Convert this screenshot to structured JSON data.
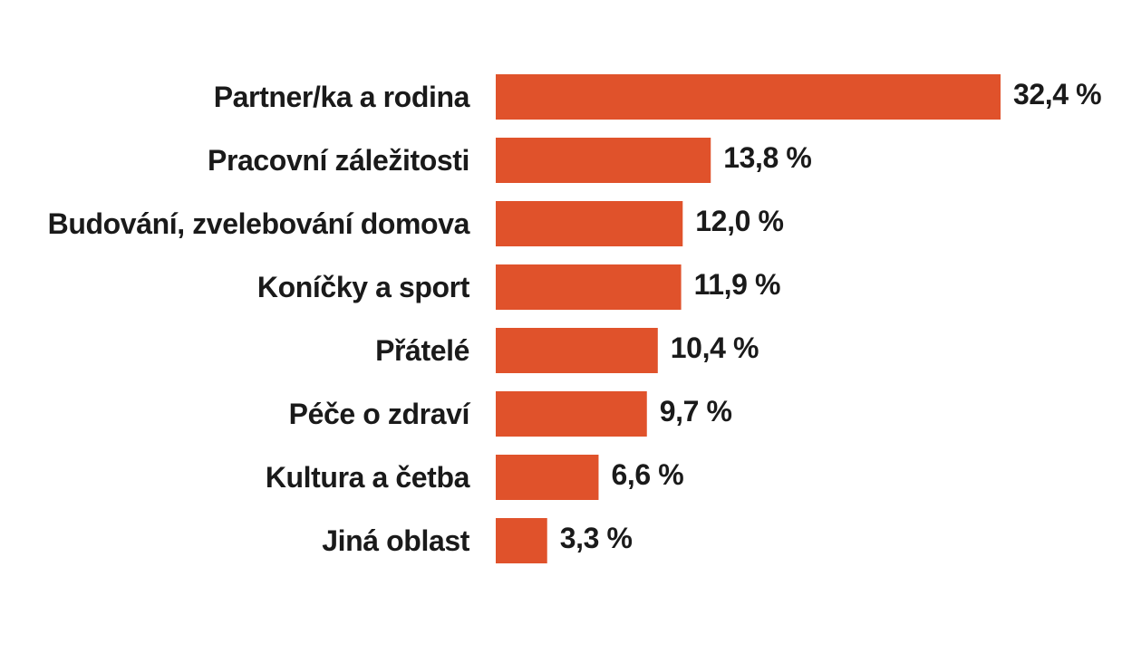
{
  "chart_data": {
    "type": "bar",
    "orientation": "horizontal",
    "categories": [
      "Partner/ka a rodina",
      "Pracovní záležitosti",
      "Budování, zvelebování domova",
      "Koníčky a sport",
      "Přátelé",
      "Péče o zdraví",
      "Kultura a četba",
      "Jiná oblast"
    ],
    "values": [
      32.4,
      13.8,
      12.0,
      11.9,
      10.4,
      9.7,
      6.6,
      3.3
    ],
    "value_labels": [
      "32,4 %",
      "13,8 %",
      "12,0 %",
      "11,9 %",
      "10,4 %",
      "9,7 %",
      "6,6 %",
      "3,3 %"
    ],
    "unit": "%",
    "bar_color": "#e0522b",
    "text_color": "#1a1a1a",
    "grid": false,
    "legend": "none"
  }
}
